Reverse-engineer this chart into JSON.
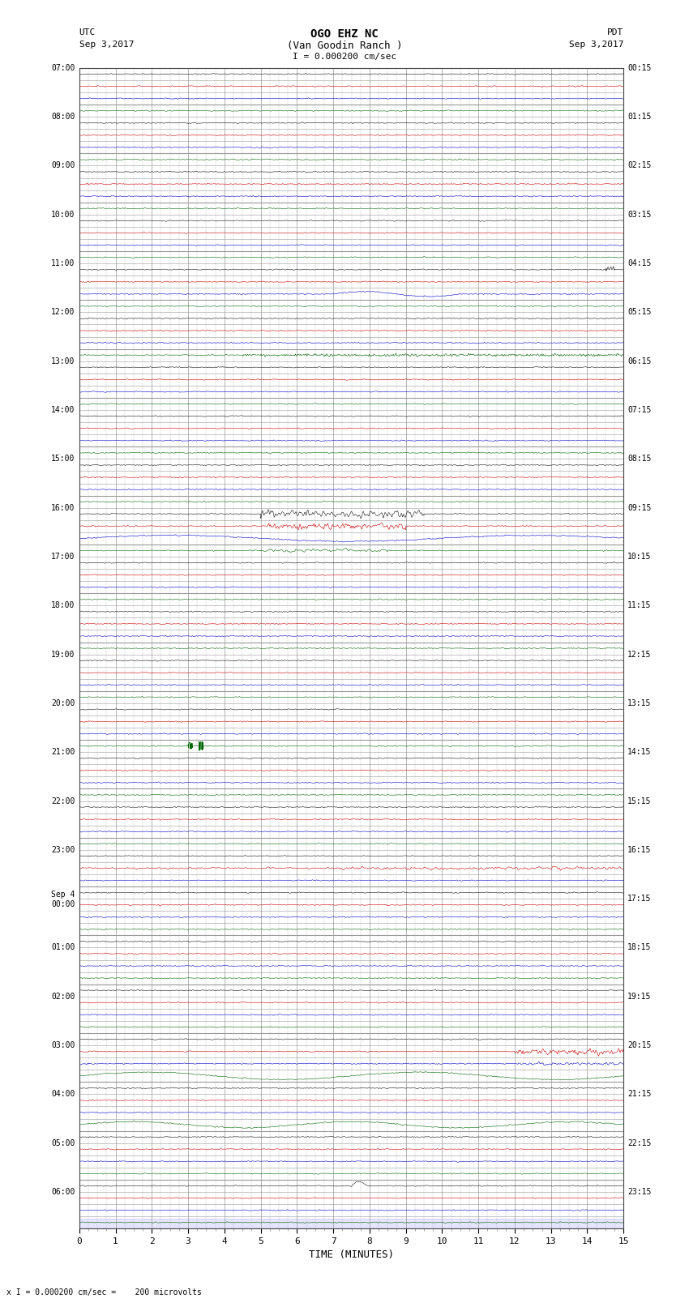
{
  "title_line1": "OGO EHZ NC",
  "title_line2": "(Van Goodin Ranch )",
  "title_line3": "I = 0.000200 cm/sec",
  "left_header_line1": "UTC",
  "left_header_line2": "Sep 3,2017",
  "right_header_line1": "PDT",
  "right_header_line2": "Sep 3,2017",
  "xlabel": "TIME (MINUTES)",
  "bottom_note": "x I = 0.000200 cm/sec =    200 microvolts",
  "xlim": [
    0,
    15
  ],
  "xticks": [
    0,
    1,
    2,
    3,
    4,
    5,
    6,
    7,
    8,
    9,
    10,
    11,
    12,
    13,
    14,
    15
  ],
  "bg_color": "#ffffff",
  "grid_color": "#999999",
  "fig_width": 8.5,
  "fig_height": 16.13,
  "seed": 42,
  "left_labels": [
    "07:00",
    "",
    "",
    "",
    "08:00",
    "",
    "",
    "",
    "09:00",
    "",
    "",
    "",
    "10:00",
    "",
    "",
    "",
    "11:00",
    "",
    "",
    "",
    "12:00",
    "",
    "",
    "",
    "13:00",
    "",
    "",
    "",
    "14:00",
    "",
    "",
    "",
    "15:00",
    "",
    "",
    "",
    "16:00",
    "",
    "",
    "",
    "17:00",
    "",
    "",
    "",
    "18:00",
    "",
    "",
    "",
    "19:00",
    "",
    "",
    "",
    "20:00",
    "",
    "",
    "",
    "21:00",
    "",
    "",
    "",
    "22:00",
    "",
    "",
    "",
    "23:00",
    "",
    "",
    "",
    "Sep 4\n00:00",
    "",
    "",
    "",
    "01:00",
    "",
    "",
    "",
    "02:00",
    "",
    "",
    "",
    "03:00",
    "",
    "",
    "",
    "04:00",
    "",
    "",
    "",
    "05:00",
    "",
    "",
    "",
    "06:00",
    "",
    ""
  ],
  "right_labels": [
    "00:15",
    "",
    "",
    "",
    "01:15",
    "",
    "",
    "",
    "02:15",
    "",
    "",
    "",
    "03:15",
    "",
    "",
    "",
    "04:15",
    "",
    "",
    "",
    "05:15",
    "",
    "",
    "",
    "06:15",
    "",
    "",
    "",
    "07:15",
    "",
    "",
    "",
    "08:15",
    "",
    "",
    "",
    "09:15",
    "",
    "",
    "",
    "10:15",
    "",
    "",
    "",
    "11:15",
    "",
    "",
    "",
    "12:15",
    "",
    "",
    "",
    "13:15",
    "",
    "",
    "",
    "14:15",
    "",
    "",
    "",
    "15:15",
    "",
    "",
    "",
    "16:15",
    "",
    "",
    "",
    "17:15",
    "",
    "",
    "",
    "18:15",
    "",
    "",
    "",
    "19:15",
    "",
    "",
    "",
    "20:15",
    "",
    "",
    "",
    "21:15",
    "",
    "",
    "",
    "22:15",
    "",
    "",
    "",
    "23:15",
    "",
    ""
  ],
  "row_colors": [
    "black",
    "red",
    "blue",
    "green",
    "black",
    "red",
    "blue",
    "green",
    "black",
    "red",
    "blue",
    "green",
    "black",
    "red",
    "blue",
    "green",
    "black",
    "red",
    "blue",
    "green",
    "black",
    "red",
    "blue",
    "green",
    "black",
    "red",
    "blue",
    "green",
    "black",
    "red",
    "blue",
    "green",
    "black",
    "red",
    "blue",
    "green",
    "black",
    "red",
    "blue",
    "green",
    "black",
    "red",
    "blue",
    "green",
    "black",
    "red",
    "blue",
    "green",
    "black",
    "red",
    "blue",
    "green",
    "black",
    "red",
    "blue",
    "green",
    "black",
    "red",
    "blue",
    "green",
    "black",
    "red",
    "blue",
    "green",
    "black",
    "red",
    "blue"
  ]
}
